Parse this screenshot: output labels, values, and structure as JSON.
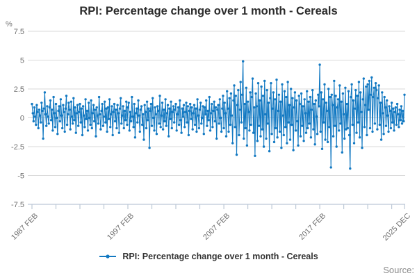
{
  "chart": {
    "title": "RPI: Percentage change over 1 month - Cereals",
    "y_unit_label": "%",
    "source_label": "Source:",
    "legend": {
      "label": "RPI: Percentage change over 1 month - Cereals"
    }
  },
  "chart_data": {
    "type": "line",
    "title": "RPI: Percentage change over 1 month - Cereals",
    "series_name": "RPI: Percentage change over 1 month - Cereals",
    "ylabel": "%",
    "frequency": "monthly",
    "x_start": "1987 FEB",
    "x_end": "2025 DEC",
    "ylim": [
      -7.5,
      7.5
    ],
    "y_ticks": [
      7.5,
      5,
      2.5,
      0,
      -2.5,
      -5,
      -7.5
    ],
    "x_tick_labels": [
      {
        "index": 0,
        "label": "1987 FEB"
      },
      {
        "index": 120,
        "label": "1997 FEB"
      },
      {
        "index": 240,
        "label": "2007 FEB"
      },
      {
        "index": 360,
        "label": "2017 FEB"
      },
      {
        "index": 466,
        "label": "2025 DEC"
      }
    ],
    "minor_tick_every_months": 30,
    "grid": "horizontal",
    "legend_position": "bottom",
    "marker_style": "dot",
    "colors": {
      "series": "#1379c2",
      "grid": "#dadada",
      "axis": "#bcc8d6",
      "tick_text": "#6e6e6e",
      "title_text": "#2b2b2b",
      "legend_text": "#333333",
      "source_text": "#8a8a8a"
    },
    "values": [
      1.2,
      0.4,
      -0.3,
      0.9,
      0.1,
      -0.6,
      1.1,
      0.5,
      -0.9,
      0.7,
      0.2,
      -0.4,
      1.3,
      0.6,
      -1.8,
      0.8,
      2.2,
      0.3,
      -0.7,
      1.0,
      0.1,
      -0.5,
      0.9,
      1.5,
      -0.2,
      0.7,
      -1.1,
      1.8,
      0.4,
      -0.8,
      1.2,
      0.0,
      -1.4,
      0.6,
      1.0,
      -0.3,
      1.6,
      0.2,
      -0.9,
      1.1,
      0.5,
      -1.2,
      0.8,
      1.9,
      -0.6,
      0.3,
      1.3,
      0.7,
      -1.0,
      1.4,
      0.1,
      -0.5,
      1.7,
      -0.2,
      0.9,
      -1.3,
      0.4,
      1.1,
      -0.7,
      0.5,
      1.2,
      -0.4,
      0.8,
      -1.5,
      1.0,
      0.2,
      -0.8,
      1.6,
      -0.1,
      0.6,
      -1.1,
      1.3,
      0.0,
      -0.6,
      1.5,
      -0.9,
      0.4,
      1.1,
      -0.3,
      0.7,
      -1.6,
      0.9,
      0.2,
      -0.5,
      1.8,
      0.3,
      -1.0,
      0.6,
      1.2,
      -0.7,
      0.1,
      1.4,
      -0.4,
      0.8,
      -1.2,
      0.9,
      -0.1,
      1.6,
      -0.8,
      0.3,
      1.0,
      -1.5,
      0.5,
      1.2,
      -0.3,
      0.7,
      -0.9,
      1.1,
      0.4,
      -1.3,
      0.8,
      1.7,
      -0.5,
      0.2,
      1.0,
      -0.9,
      0.6,
      -0.2,
      1.4,
      -0.6,
      0.9,
      1.3,
      -1.1,
      0.5,
      -0.3,
      1.8,
      0.1,
      -0.8,
      1.2,
      -1.7,
      0.4,
      0.8,
      -0.4,
      1.5,
      0.2,
      -1.2,
      0.7,
      1.0,
      -0.6,
      0.3,
      -1.9,
      1.1,
      0.5,
      -0.9,
      1.4,
      -0.2,
      0.8,
      -2.6,
      0.6,
      1.2,
      -0.7,
      1.7,
      0.0,
      -1.1,
      0.9,
      0.3,
      -1.4,
      1.0,
      0.6,
      -0.5,
      1.9,
      -0.8,
      0.2,
      1.3,
      -1.0,
      0.7,
      -0.3,
      1.6,
      -0.7,
      0.4,
      1.1,
      -1.6,
      0.8,
      -0.1,
      1.4,
      -0.9,
      0.5,
      1.0,
      -0.4,
      0.7,
      1.2,
      -1.1,
      0.3,
      0.9,
      -0.6,
      1.5,
      -0.2,
      -1.3,
      0.8,
      0.1,
      1.1,
      -0.8,
      0.5,
      1.3,
      -0.4,
      1.0,
      -1.5,
      0.6,
      1.2,
      -0.1,
      0.9,
      -1.0,
      0.4,
      1.1,
      -0.6,
      0.8,
      -1.2,
      1.6,
      0.2,
      -0.9,
      0.7,
      1.3,
      -0.5,
      0.0,
      1.0,
      -1.4,
      0.9,
      0.3,
      1.5,
      -0.7,
      0.6,
      -0.2,
      1.8,
      -1.1,
      0.4,
      1.2,
      -0.8,
      0.6,
      1.4,
      -0.3,
      0.9,
      -1.8,
      0.7,
      1.1,
      -0.5,
      1.6,
      0.0,
      -1.2,
      0.8,
      1.9,
      -0.9,
      1.3,
      0.4,
      -1.6,
      2.3,
      0.8,
      -1.2,
      1.7,
      -0.6,
      2.1,
      0.2,
      -2.2,
      1.5,
      2.8,
      -0.8,
      1.9,
      -3.2,
      1.1,
      2.4,
      -1.5,
      0.7,
      3.1,
      -0.4,
      2.0,
      4.9,
      -1.8,
      1.2,
      -0.9,
      2.6,
      -2.4,
      1.4,
      0.5,
      -1.1,
      2.2,
      -0.6,
      1.8,
      3.4,
      -1.3,
      0.9,
      -3.3,
      2.1,
      1.0,
      -2.0,
      3.0,
      -0.7,
      1.5,
      -1.6,
      2.7,
      -1.0,
      1.9,
      -2.5,
      3.2,
      0.3,
      -1.8,
      2.4,
      -0.5,
      1.3,
      -2.9,
      1.7,
      3.0,
      -1.4,
      0.8,
      2.2,
      -2.1,
      1.6,
      -0.9,
      3.3,
      -1.7,
      0.6,
      2.0,
      -1.2,
      1.4,
      -2.6,
      2.9,
      0.2,
      -1.5,
      2.3,
      -0.8,
      1.8,
      -2.2,
      3.1,
      -0.4,
      1.1,
      -1.9,
      2.5,
      -0.6,
      1.7,
      -2.8,
      0.9,
      2.2,
      -1.1,
      1.5,
      -0.3,
      -2.4,
      1.9,
      1.2,
      -1.6,
      2.1,
      -0.7,
      1.0,
      -2.0,
      1.6,
      0.4,
      -1.3,
      2.3,
      -0.9,
      1.4,
      -0.5,
      1.8,
      -1.7,
      0.7,
      2.4,
      -1.0,
      1.2,
      -2.3,
      1.5,
      0.1,
      -1.4,
      2.0,
      1.0,
      4.6,
      -1.2,
      2.2,
      -2.7,
      1.6,
      -0.4,
      2.9,
      -1.9,
      1.3,
      0.6,
      -2.1,
      2.5,
      -0.8,
      1.8,
      -4.3,
      2.0,
      1.1,
      -1.6,
      3.2,
      -0.7,
      1.9,
      -2.5,
      0.9,
      1.6,
      -1.1,
      2.8,
      -0.5,
      1.4,
      -3.0,
      2.1,
      0.3,
      -1.8,
      2.6,
      -1.0,
      1.2,
      -0.9,
      2.3,
      -1.5,
      -4.4,
      1.8,
      2.9,
      -0.6,
      1.5,
      -2.2,
      0.8,
      2.4,
      -1.3,
      1.9,
      -0.4,
      3.1,
      -1.7,
      2.2,
      0.5,
      -2.6,
      1.6,
      3.4,
      -0.8,
      1.1,
      2.7,
      -1.5,
      2.9,
      0.7,
      3.2,
      -0.9,
      2.0,
      3.5,
      -1.2,
      1.8,
      2.6,
      -0.5,
      3.0,
      2.4,
      -1.0,
      1.7,
      2.8,
      -0.6,
      1.3,
      -1.9,
      2.2,
      0.4,
      -1.4,
      1.8,
      0.9,
      -0.7,
      1.5,
      0.2,
      -1.2,
      1.0,
      0.6,
      -0.9,
      1.3,
      -0.4,
      0.8,
      -1.1,
      0.5,
      0.9,
      -0.6,
      1.2,
      0.3,
      -0.8,
      0.7,
      -0.2,
      1.0,
      -0.5,
      0.6,
      -0.3,
      2.0
    ]
  }
}
